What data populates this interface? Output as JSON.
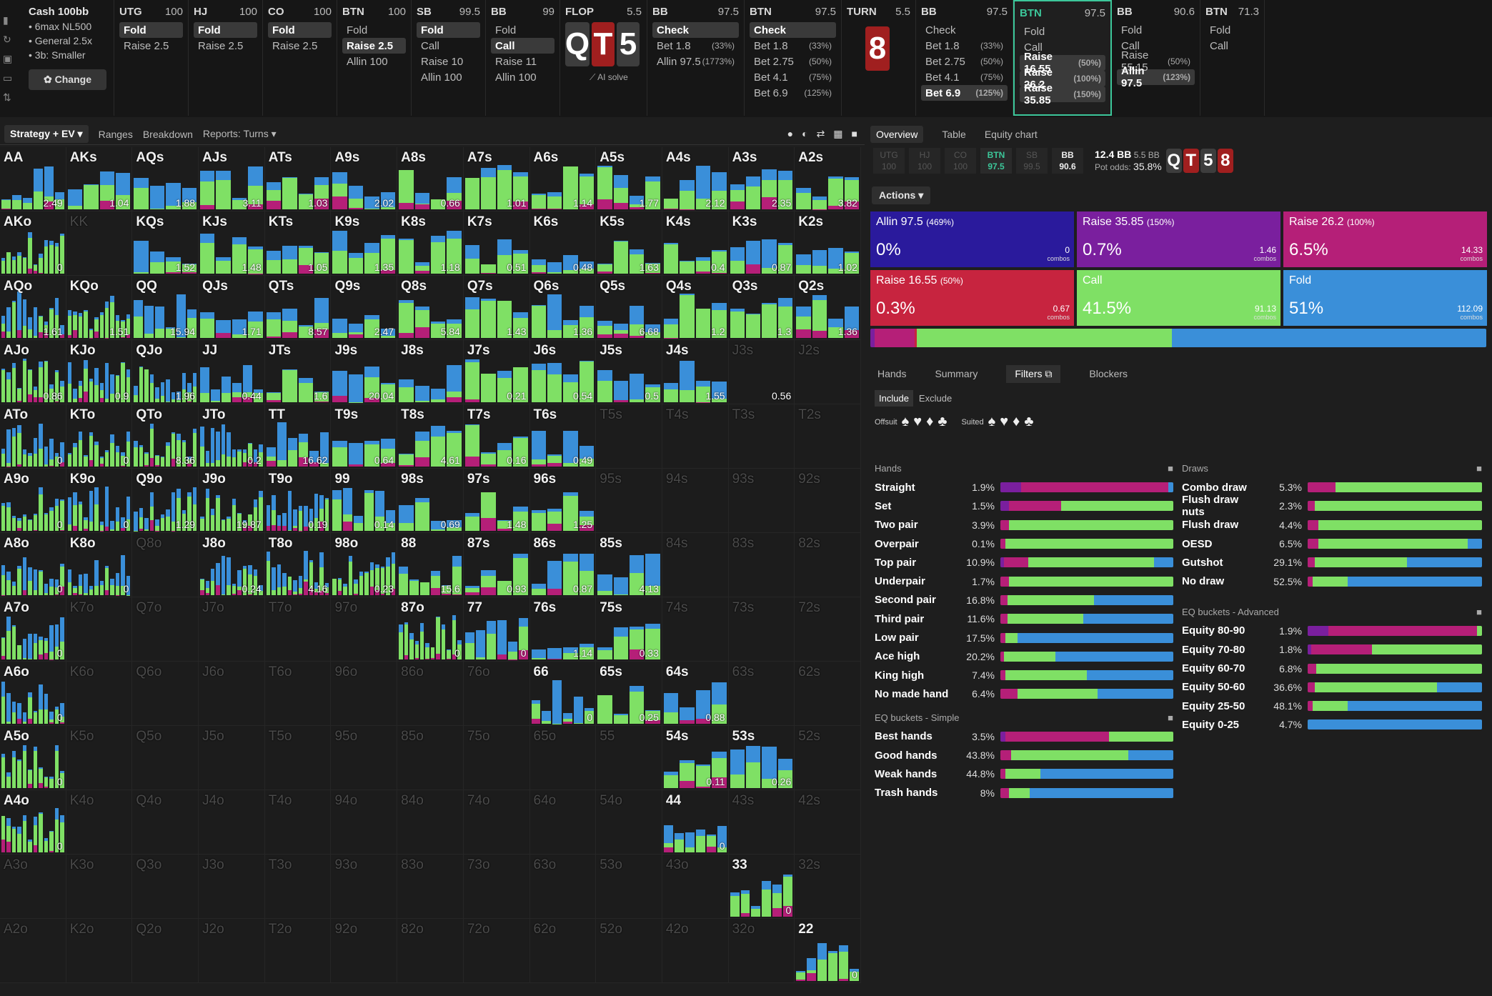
{
  "colors": {
    "allin": "#2a1a9c",
    "raise_big": "#7a1f9e",
    "raise_mid": "#b51f78",
    "raise_small": "#c7243f",
    "call": "#7fe065",
    "fold": "#3a8fd9"
  },
  "cash": {
    "title": "Cash 100bb",
    "lines": [
      "• 6max NL500",
      "• General 2.5x",
      "• 3b: Smaller"
    ],
    "change": "✿ Change"
  },
  "positions": [
    {
      "name": "UTG",
      "stack": "100",
      "actions": [
        {
          "label": "Fold",
          "sel": true
        },
        {
          "label": "Raise 2.5"
        }
      ],
      "w": 104
    },
    {
      "name": "HJ",
      "stack": "100",
      "actions": [
        {
          "label": "Fold",
          "sel": true
        },
        {
          "label": "Raise 2.5"
        }
      ],
      "w": 104
    },
    {
      "name": "CO",
      "stack": "100",
      "actions": [
        {
          "label": "Fold",
          "sel": true
        },
        {
          "label": "Raise 2.5"
        }
      ],
      "w": 104
    },
    {
      "name": "BTN",
      "stack": "100",
      "actions": [
        {
          "label": "Fold"
        },
        {
          "label": "Raise 2.5",
          "sel": true
        },
        {
          "label": "Allin 100"
        }
      ],
      "w": 104
    },
    {
      "name": "SB",
      "stack": "99.5",
      "actions": [
        {
          "label": "Fold",
          "sel": true
        },
        {
          "label": "Call"
        },
        {
          "label": "Raise 10"
        },
        {
          "label": "Allin 100"
        }
      ],
      "w": 104
    },
    {
      "name": "BB",
      "stack": "99",
      "actions": [
        {
          "label": "Fold"
        },
        {
          "label": "Call",
          "sel": true
        },
        {
          "label": "Raise 11"
        },
        {
          "label": "Allin 100"
        }
      ],
      "w": 104
    },
    {
      "name": "FLOP",
      "stack": "5.5",
      "board": [
        "Q",
        "T",
        "5"
      ],
      "ai": "⟋ AI solve",
      "w": 122
    },
    {
      "name": "BB",
      "stack": "97.5",
      "actions": [
        {
          "label": "Check",
          "sel": true
        },
        {
          "label": "Bet 1.8",
          "pct": "(33%)"
        },
        {
          "label": "Allin 97.5",
          "pct": "(1773%)"
        }
      ],
      "w": 136
    },
    {
      "name": "BTN",
      "stack": "97.5",
      "actions": [
        {
          "label": "Check",
          "sel": true
        },
        {
          "label": "Bet 1.8",
          "pct": "(33%)"
        },
        {
          "label": "Bet 2.75",
          "pct": "(50%)"
        },
        {
          "label": "Bet 4.1",
          "pct": "(75%)"
        },
        {
          "label": "Bet 6.9",
          "pct": "(125%)"
        }
      ],
      "w": 136
    },
    {
      "name": "TURN",
      "stack": "5.5",
      "turncard": "8",
      "w": 104
    },
    {
      "name": "BB",
      "stack": "97.5",
      "actions": [
        {
          "label": "Check"
        },
        {
          "label": "Bet 1.8",
          "pct": "(33%)"
        },
        {
          "label": "Bet 2.75",
          "pct": "(50%)"
        },
        {
          "label": "Bet 4.1",
          "pct": "(75%)"
        },
        {
          "label": "Bet 6.9",
          "pct": "(125%)",
          "sel": true
        }
      ],
      "w": 136
    },
    {
      "name": "BTN",
      "stack": "97.5",
      "cur": true,
      "actions": [
        {
          "label": "Fold"
        },
        {
          "label": "Call"
        },
        {
          "label": "Raise 16.55",
          "pct": "(50%)",
          "sel": true
        },
        {
          "label": "Raise 26.2",
          "pct": "(100%)",
          "sel": true
        },
        {
          "label": "Raise 35.85",
          "pct": "(150%)",
          "sel": true
        }
      ],
      "w": 138
    },
    {
      "name": "BB",
      "stack": "90.6",
      "actions": [
        {
          "label": "Fold"
        },
        {
          "label": "Call"
        },
        {
          "label": "Raise 55.15",
          "pct": "(50%)"
        },
        {
          "label": "Allin 97.5",
          "pct": "(123%)",
          "sel": true
        }
      ],
      "w": 124
    },
    {
      "name": "BTN",
      "stack": "71.3",
      "actions": [
        {
          "label": "Fold"
        },
        {
          "label": "Call"
        }
      ],
      "w": 90
    }
  ],
  "tabs": [
    "Strategy + EV ▾",
    "Ranges",
    "Breakdown",
    "Reports: Turns ▾"
  ],
  "grid": {
    "rows": [
      [
        "AA",
        "AKs",
        "AQs",
        "AJs",
        "ATs",
        "A9s",
        "A8s",
        "A7s",
        "A6s",
        "A5s",
        "A4s",
        "A3s",
        "A2s"
      ],
      [
        "AKo",
        "KK",
        "KQs",
        "KJs",
        "KTs",
        "K9s",
        "K8s",
        "K7s",
        "K6s",
        "K5s",
        "K4s",
        "K3s",
        "K2s"
      ],
      [
        "AQo",
        "KQo",
        "QQ",
        "QJs",
        "QTs",
        "Q9s",
        "Q8s",
        "Q7s",
        "Q6s",
        "Q5s",
        "Q4s",
        "Q3s",
        "Q2s"
      ],
      [
        "AJo",
        "KJo",
        "QJo",
        "JJ",
        "JTs",
        "J9s",
        "J8s",
        "J7s",
        "J6s",
        "J5s",
        "J4s",
        "J3s",
        "J2s"
      ],
      [
        "ATo",
        "KTo",
        "QTo",
        "JTo",
        "TT",
        "T9s",
        "T8s",
        "T7s",
        "T6s",
        "T5s",
        "T4s",
        "T3s",
        "T2s"
      ],
      [
        "A9o",
        "K9o",
        "Q9o",
        "J9o",
        "T9o",
        "99",
        "98s",
        "97s",
        "96s",
        "95s",
        "94s",
        "93s",
        "92s"
      ],
      [
        "A8o",
        "K8o",
        "Q8o",
        "J8o",
        "T8o",
        "98o",
        "88",
        "87s",
        "86s",
        "85s",
        "84s",
        "83s",
        "82s"
      ],
      [
        "A7o",
        "K7o",
        "Q7o",
        "J7o",
        "T7o",
        "97o",
        "87o",
        "77",
        "76s",
        "75s",
        "74s",
        "73s",
        "72s"
      ],
      [
        "A6o",
        "K6o",
        "Q6o",
        "J6o",
        "T6o",
        "96o",
        "86o",
        "76o",
        "66",
        "65s",
        "64s",
        "63s",
        "62s"
      ],
      [
        "A5o",
        "K5o",
        "Q5o",
        "J5o",
        "T5o",
        "95o",
        "85o",
        "75o",
        "65o",
        "55",
        "54s",
        "53s",
        "52s"
      ],
      [
        "A4o",
        "K4o",
        "Q4o",
        "J4o",
        "T4o",
        "94o",
        "84o",
        "74o",
        "64o",
        "54o",
        "44",
        "43s",
        "42s"
      ],
      [
        "A3o",
        "K3o",
        "Q3o",
        "J3o",
        "T3o",
        "93o",
        "83o",
        "73o",
        "63o",
        "53o",
        "43o",
        "33",
        "32s"
      ],
      [
        "A2o",
        "K2o",
        "Q2o",
        "J2o",
        "T2o",
        "92o",
        "82o",
        "72o",
        "62o",
        "52o",
        "42o",
        "32o",
        "22"
      ]
    ],
    "ev": {
      "AA": "2.49",
      "AKs": "1.04",
      "AQs": "1.88",
      "AJs": "3.11",
      "ATs": "1.03",
      "A9s": "2.02",
      "A8s": "0.66",
      "A7s": "1.01",
      "A6s": "1.14",
      "A5s": "1.77",
      "A4s": "2.12",
      "A3s": "2.35",
      "A2s": "3.82",
      "AKo": "0",
      "KQs": "1.52",
      "KJs": "1.48",
      "KTs": "1.05",
      "K9s": "1.35",
      "K8s": "1.18",
      "K7s": "0.51",
      "K6s": "0.48",
      "K5s": "1.63",
      "K4s": "0.4",
      "K3s": "0.87",
      "K2s": "1.02",
      "AQo": "1.61",
      "KQo": "1.51",
      "QQ": "15.94",
      "QJs": "1.71",
      "QTs": "8.57",
      "Q9s": "2.47",
      "Q8s": "5.84",
      "Q7s": "1.43",
      "Q6s": "1.36",
      "Q5s": "6.68",
      "Q4s": "1.2",
      "Q3s": "1.3",
      "Q2s": "1.36",
      "AJo": "0.86",
      "KJo": "0.9",
      "QJo": "1.96",
      "JJ": "0.44",
      "JTs": "1.6",
      "J9s": "20.04",
      "J7s": "0.21",
      "J6s": "0.54",
      "J5s": "0.5",
      "J4s": "1.55",
      "J3s": "0.56",
      "ATo": "0",
      "KTo": "0",
      "QTo": "8.36",
      "JTo": "0.2",
      "TT": "16.62",
      "T9s": "0.64",
      "T8s": "4.61",
      "T7s": "0.16",
      "T6s": "0.49",
      "A9o": "0",
      "K9o": "0",
      "Q9o": "1.29",
      "J9o": "19.87",
      "T9o": "0.19",
      "99": "0.14",
      "98s": "0.69",
      "97s": "1.48",
      "96s": "1.25",
      "A8o": "0",
      "K8o": "0",
      "J8o": "0.24",
      "T8o": "4.16",
      "98o": "0.23",
      "88": "15.6",
      "87s": "0.93",
      "86s": "0.87",
      "85s": "4.13",
      "A7o": "0",
      "87o": "0",
      "77": "0",
      "76s": "1.14",
      "75s": "0.33",
      "A6o": "0",
      "66": "0",
      "65s": "0.25",
      "64s": "0.88",
      "A5o": "0",
      "54s": "0.11",
      "53s": "0.26",
      "A4o": "0",
      "44": "0",
      "33": "0",
      "22": "0"
    },
    "dim": [
      "KK",
      "J3s",
      "J2s",
      "T5s",
      "T4s",
      "T3s",
      "T2s",
      "95s",
      "94s",
      "93s",
      "92s",
      "Q8o",
      "84s",
      "83s",
      "82s",
      "K7o",
      "Q7o",
      "J7o",
      "T7o",
      "97o",
      "74s",
      "73s",
      "72s",
      "K6o",
      "Q6o",
      "J6o",
      "T6o",
      "96o",
      "86o",
      "76o",
      "63s",
      "62s",
      "K5o",
      "Q5o",
      "J5o",
      "T5o",
      "95o",
      "85o",
      "75o",
      "65o",
      "55",
      "52s",
      "K4o",
      "Q4o",
      "J4o",
      "T4o",
      "94o",
      "84o",
      "74o",
      "64o",
      "54o",
      "43s",
      "42s",
      "A3o",
      "K3o",
      "Q3o",
      "J3o",
      "T3o",
      "93o",
      "83o",
      "73o",
      "63o",
      "53o",
      "43o",
      "32s",
      "A2o",
      "K2o",
      "Q2o",
      "J2o",
      "T2o",
      "92o",
      "82o",
      "72o",
      "62o",
      "52o",
      "42o",
      "32o"
    ]
  },
  "right": {
    "tabs": [
      "Overview",
      "Table",
      "Equity chart"
    ],
    "posrow": [
      {
        "n": "UTG",
        "s": "100"
      },
      {
        "n": "HJ",
        "s": "100"
      },
      {
        "n": "CO",
        "s": "100"
      },
      {
        "n": "BTN",
        "s": "97.5",
        "on": true
      },
      {
        "n": "SB",
        "s": "99.5"
      },
      {
        "n": "BB",
        "s": "90.6",
        "bb": true
      }
    ],
    "pot": "12.4 BB",
    "pot2": "5.5 BB",
    "potodds_label": "Pot odds:",
    "potodds": "35.8%",
    "board": [
      {
        "r": "Q",
        "c": "s"
      },
      {
        "r": "T",
        "c": "h"
      },
      {
        "r": "5",
        "c": "s"
      },
      {
        "r": "8",
        "c": "h"
      }
    ],
    "actions_label": "Actions ▾",
    "actions": [
      {
        "label": "Allin 97.5",
        "pct": "(469%)",
        "freq": "0%",
        "combos": "0",
        "color": "#2a1a9c"
      },
      {
        "label": "Raise 35.85",
        "pct": "(150%)",
        "freq": "0.7%",
        "combos": "1.46",
        "color": "#7a1f9e"
      },
      {
        "label": "Raise 26.2",
        "pct": "(100%)",
        "freq": "6.5%",
        "combos": "14.33",
        "color": "#b51f78"
      },
      {
        "label": "Raise 16.55",
        "pct": "(50%)",
        "freq": "0.3%",
        "combos": "0.67",
        "color": "#c7243f"
      },
      {
        "label": "Call",
        "pct": "",
        "freq": "41.5%",
        "combos": "91.13",
        "color": "#7fe065"
      },
      {
        "label": "Fold",
        "pct": "",
        "freq": "51%",
        "combos": "112.09",
        "color": "#3a8fd9"
      }
    ],
    "combos_word": "combos",
    "subtabs": [
      "Hands",
      "Summary",
      "Filters ⧉",
      "Blockers"
    ],
    "include": "Include",
    "exclude": "Exclude",
    "offsuit": "Offsuit",
    "suited": "Suited",
    "hands_title": "Hands",
    "hands": [
      {
        "n": "Straight",
        "v": "1.9%",
        "seg": [
          0.12,
          0.85,
          0,
          0.03
        ]
      },
      {
        "n": "Set",
        "v": "1.5%",
        "seg": [
          0.05,
          0.3,
          0.65,
          0
        ]
      },
      {
        "n": "Two pair",
        "v": "3.9%",
        "seg": [
          0,
          0.05,
          0.95,
          0
        ]
      },
      {
        "n": "Overpair",
        "v": "0.1%",
        "seg": [
          0,
          0.03,
          0.97,
          0
        ]
      },
      {
        "n": "Top pair",
        "v": "10.9%",
        "seg": [
          0.02,
          0.14,
          0.73,
          0.11
        ]
      },
      {
        "n": "Underpair",
        "v": "1.7%",
        "seg": [
          0,
          0.05,
          0.95,
          0
        ]
      },
      {
        "n": "Second pair",
        "v": "16.8%",
        "seg": [
          0,
          0.04,
          0.5,
          0.46
        ]
      },
      {
        "n": "Third pair",
        "v": "11.6%",
        "seg": [
          0,
          0.04,
          0.44,
          0.52
        ]
      },
      {
        "n": "Low pair",
        "v": "17.5%",
        "seg": [
          0,
          0.03,
          0.07,
          0.9
        ]
      },
      {
        "n": "Ace high",
        "v": "20.2%",
        "seg": [
          0,
          0.02,
          0.3,
          0.68
        ]
      },
      {
        "n": "King high",
        "v": "7.4%",
        "seg": [
          0,
          0.03,
          0.47,
          0.5
        ]
      },
      {
        "n": "No made hand",
        "v": "6.4%",
        "seg": [
          0,
          0.1,
          0.46,
          0.44
        ]
      }
    ],
    "eqs_title": "EQ buckets - Simple",
    "eqs": [
      {
        "n": "Best hands",
        "v": "3.5%",
        "seg": [
          0.03,
          0.6,
          0.37,
          0
        ]
      },
      {
        "n": "Good hands",
        "v": "43.8%",
        "seg": [
          0,
          0.06,
          0.68,
          0.26
        ]
      },
      {
        "n": "Weak hands",
        "v": "44.8%",
        "seg": [
          0,
          0.03,
          0.2,
          0.77
        ]
      },
      {
        "n": "Trash hands",
        "v": "8%",
        "seg": [
          0,
          0.05,
          0.12,
          0.83
        ]
      }
    ],
    "draws_title": "Draws",
    "draws": [
      {
        "n": "Combo draw",
        "v": "5.3%",
        "seg": [
          0,
          0.16,
          0.84,
          0
        ]
      },
      {
        "n": "Flush draw nuts",
        "v": "2.3%",
        "seg": [
          0,
          0.04,
          0.96,
          0
        ]
      },
      {
        "n": "Flush draw",
        "v": "4.4%",
        "seg": [
          0,
          0.06,
          0.94,
          0
        ]
      },
      {
        "n": "OESD",
        "v": "6.5%",
        "seg": [
          0,
          0.06,
          0.86,
          0.08
        ]
      },
      {
        "n": "Gutshot",
        "v": "29.1%",
        "seg": [
          0,
          0.04,
          0.53,
          0.43
        ]
      },
      {
        "n": "No draw",
        "v": "52.5%",
        "seg": [
          0,
          0.03,
          0.2,
          0.77
        ]
      }
    ],
    "eqa_title": "EQ buckets - Advanced",
    "eqa": [
      {
        "n": "Equity 80-90",
        "v": "1.9%",
        "seg": [
          0.12,
          0.85,
          0.03,
          0
        ]
      },
      {
        "n": "Equity 70-80",
        "v": "1.8%",
        "seg": [
          0.02,
          0.35,
          0.63,
          0
        ]
      },
      {
        "n": "Equity 60-70",
        "v": "6.8%",
        "seg": [
          0,
          0.05,
          0.95,
          0
        ]
      },
      {
        "n": "Equity 50-60",
        "v": "36.6%",
        "seg": [
          0,
          0.04,
          0.7,
          0.26
        ]
      },
      {
        "n": "Equity 25-50",
        "v": "48.1%",
        "seg": [
          0,
          0.03,
          0.2,
          0.77
        ]
      },
      {
        "n": "Equity 0-25",
        "v": "4.7%",
        "seg": [
          0,
          0,
          0,
          1
        ]
      }
    ]
  }
}
